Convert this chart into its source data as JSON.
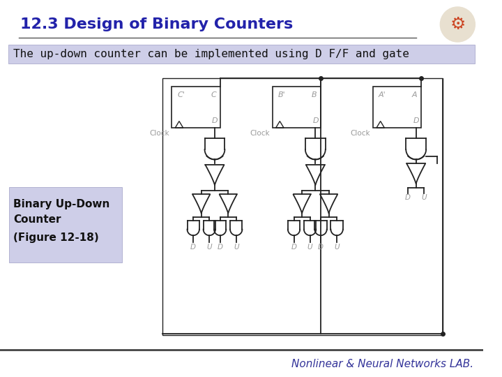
{
  "title": "12.3 Design of Binary Counters",
  "title_color": "#2222AA",
  "title_fontsize": 16,
  "subtitle": "The up-down counter can be implemented using D F/F and gate",
  "subtitle_bg": "#CECEE8",
  "subtitle_fontsize": 11.5,
  "label_box_bg": "#CECEE8",
  "label_text1": "Binary Up-Down\nCounter",
  "label_text2": "(Figure 12-18)",
  "label_fontsize": 11,
  "footer_text": "Nonlinear & Neural Networks LAB.",
  "footer_color": "#333399",
  "footer_fontsize": 11,
  "bg_color": "#FFFFFF",
  "circuit_color": "#222222",
  "ff_label_color": "#999999",
  "clock_label_color": "#999999",
  "du_label_color": "#999999"
}
